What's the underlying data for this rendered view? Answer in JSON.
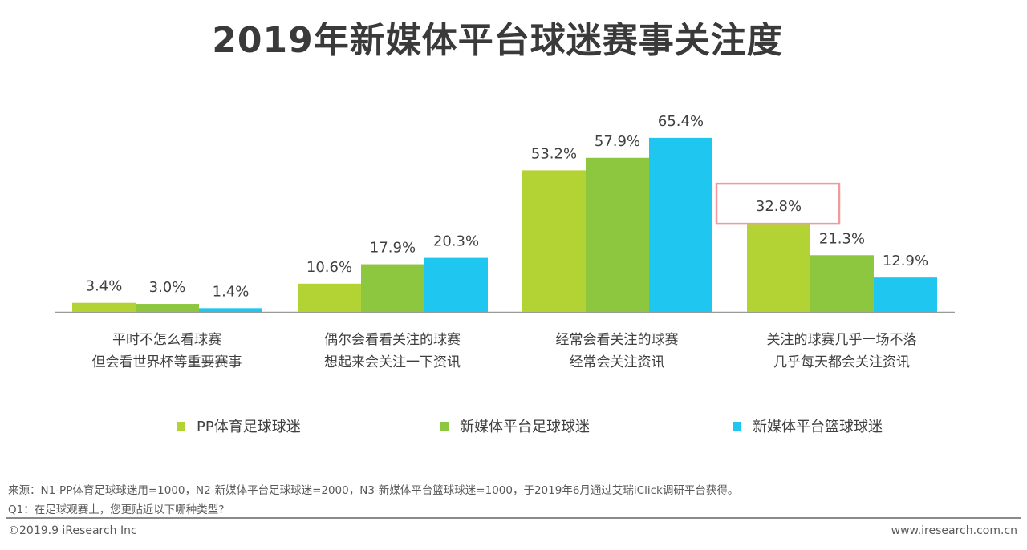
{
  "title": "2019年新媒体平台球迷赛事关注度",
  "chart_data": {
    "type": "bar",
    "title": "2019年新媒体平台球迷赛事关注度",
    "categories": [
      [
        "平时不怎么看球赛",
        "但会看世界杯等重要赛事"
      ],
      [
        "偶尔会看看关注的球赛",
        "想起来会关注一下资讯"
      ],
      [
        "经常会看关注的球赛",
        "经常会关注资讯"
      ],
      [
        "关注的球赛几乎一场不落",
        "几乎每天都会关注资讯"
      ]
    ],
    "series": [
      {
        "name": "PP体育足球球迷",
        "color": "#b3d233",
        "values": [
          3.4,
          10.6,
          53.2,
          32.8
        ]
      },
      {
        "name": "新媒体平台足球球迷",
        "color": "#8dc63f",
        "values": [
          3.0,
          17.9,
          57.9,
          21.3
        ]
      },
      {
        "name": "新媒体平台篮球球迷",
        "color": "#1ec6f0",
        "values": [
          1.4,
          20.3,
          65.4,
          12.9
        ]
      }
    ],
    "value_suffix": "%",
    "highlighted_label": "32.8%",
    "highlight_color": "#f19a9c",
    "ylim": [
      0,
      70
    ],
    "grid": false,
    "legend_position": "bottom"
  },
  "notes": {
    "source": "来源：N1-PP体育足球球迷用=1000，N2-新媒体平台足球球迷=2000，N3-新媒体平台篮球球迷=1000，于2019年6月通过艾瑞iClick调研平台获得。",
    "question": "Q1：在足球观赛上，您更贴近以下哪种类型?"
  },
  "footer": {
    "copyright": "©2019.9 iResearch Inc",
    "website": "www.iresearch.com.cn"
  }
}
